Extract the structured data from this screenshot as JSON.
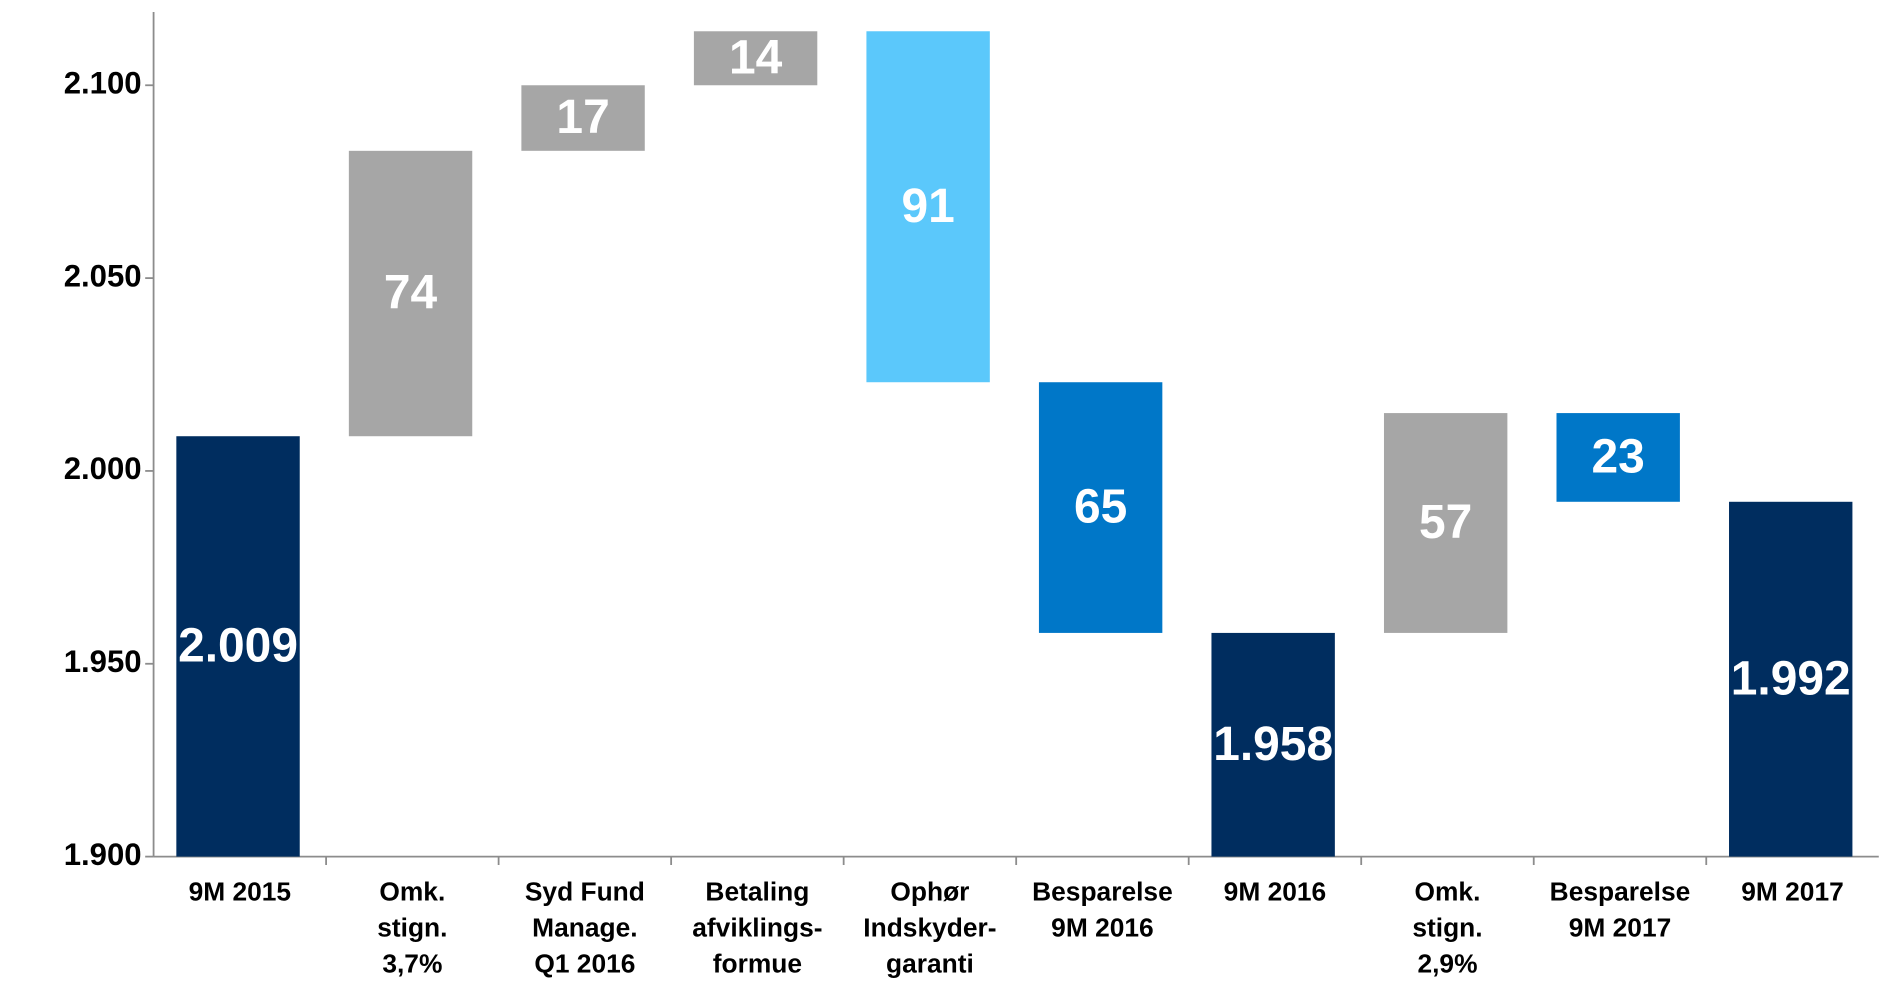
{
  "chart_data": {
    "type": "waterfall",
    "categories": [
      [
        "9M 2015"
      ],
      [
        "Omk.",
        "stign.",
        "3,7%"
      ],
      [
        "Syd Fund",
        "Manage.",
        "Q1 2016"
      ],
      [
        "Betaling",
        "afviklings-",
        "formue"
      ],
      [
        "Ophør",
        "Indskyder-",
        "garanti"
      ],
      [
        "Besparelse",
        "9M 2016"
      ],
      [
        "9M 2016"
      ],
      [
        "Omk.",
        "stign.",
        "2,9%"
      ],
      [
        "Besparelse",
        "9M 2017"
      ],
      [
        "9M 2017"
      ]
    ],
    "values": [
      2009,
      74,
      17,
      14,
      91,
      65,
      1958,
      57,
      23,
      1992
    ],
    "value_labels": [
      "2.009",
      "74",
      "17",
      "14",
      "91",
      "65",
      "1.958",
      "57",
      "23",
      "1.992"
    ],
    "measures": [
      "absolute",
      "increase",
      "increase",
      "increase",
      "decrease",
      "decrease",
      "absolute",
      "increase",
      "decrease",
      "absolute"
    ],
    "colors": [
      "#002d5f",
      "#a6a6a6",
      "#a6a6a6",
      "#a6a6a6",
      "#5bc8fb",
      "#0077c8",
      "#002d5f",
      "#a6a6a6",
      "#0077c8",
      "#002d5f"
    ],
    "ylim": [
      1900,
      2119
    ],
    "yticks": [
      {
        "value": 1900,
        "label": "1.900"
      },
      {
        "value": 1950,
        "label": "1.950"
      },
      {
        "value": 2000,
        "label": "2.000"
      },
      {
        "value": 2050,
        "label": "2.050"
      },
      {
        "value": 2100,
        "label": "2.100"
      }
    ]
  }
}
